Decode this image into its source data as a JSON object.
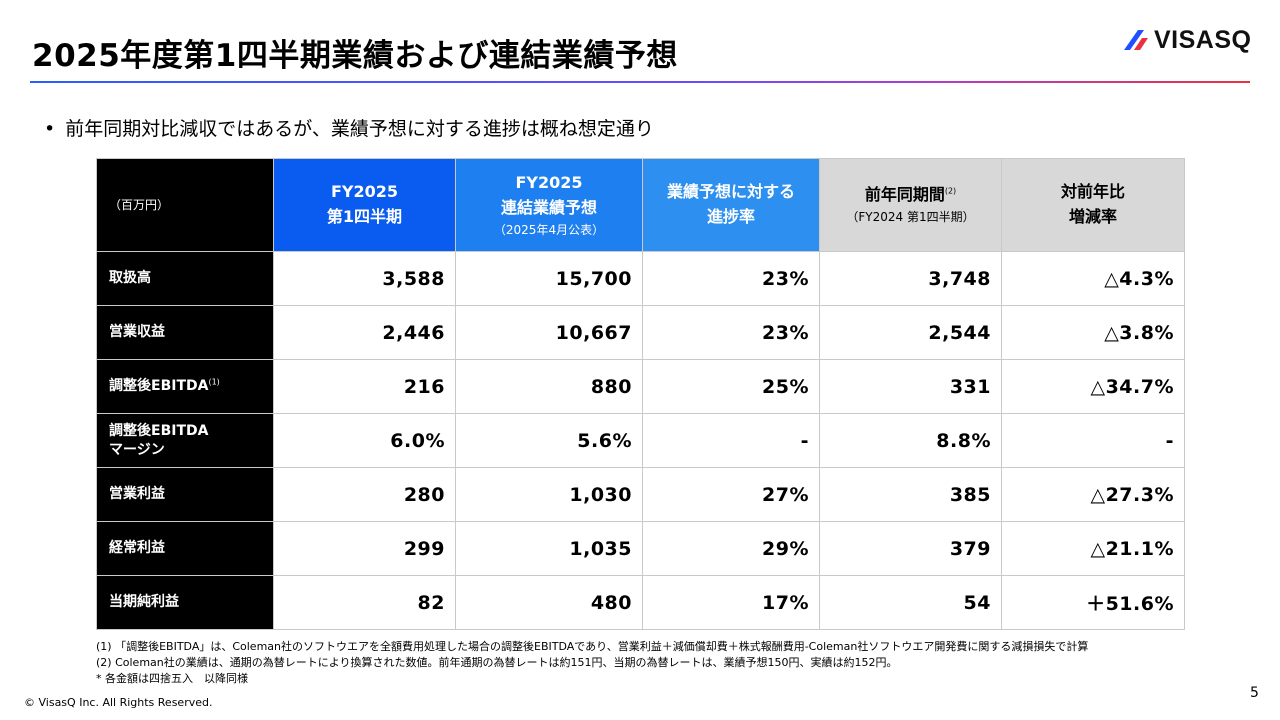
{
  "title": "2025年度第1四半期業績および連結業績予想",
  "logo": {
    "text": "VISASQ",
    "accent_colors": [
      "#e8333f",
      "#1f4fff"
    ]
  },
  "bullet": "前年同期対比減収ではあるが、業績予想に対する進捗は概ね想定通り",
  "table": {
    "unit": "（百万円）",
    "columns": [
      {
        "line1": "FY2025",
        "line2": "第1四半期",
        "note": ""
      },
      {
        "line1": "FY2025",
        "line2": "連結業績予想",
        "note": "（2025年4月公表）"
      },
      {
        "line1": "業績予想に対する",
        "line2": "進捗率",
        "note": ""
      },
      {
        "line1": "前年同期間",
        "sup": "(2)",
        "line2": "",
        "note": "（FY2024 第1四半期）"
      },
      {
        "line1": "対前年比",
        "line2": "増減率",
        "note": ""
      }
    ],
    "rows": [
      {
        "label": "取扱高",
        "label2": "",
        "sup": "",
        "values": [
          "3,588",
          "15,700",
          "23%",
          "3,748",
          "△4.3%"
        ]
      },
      {
        "label": "営業収益",
        "label2": "",
        "sup": "",
        "values": [
          "2,446",
          "10,667",
          "23%",
          "2,544",
          "△3.8%"
        ]
      },
      {
        "label": "調整後EBITDA",
        "label2": "",
        "sup": "(1)",
        "values": [
          "216",
          "880",
          "25%",
          "331",
          "△34.7%"
        ]
      },
      {
        "label": "調整後EBITDA",
        "label2": "マージン",
        "sup": "",
        "values": [
          "6.0%",
          "5.6%",
          "-",
          "8.8%",
          "-"
        ]
      },
      {
        "label": "営業利益",
        "label2": "",
        "sup": "",
        "values": [
          "280",
          "1,030",
          "27%",
          "385",
          "△27.3%"
        ]
      },
      {
        "label": "経常利益",
        "label2": "",
        "sup": "",
        "values": [
          "299",
          "1,035",
          "29%",
          "379",
          "△21.1%"
        ]
      },
      {
        "label": "当期純利益",
        "label2": "",
        "sup": "",
        "values": [
          "82",
          "480",
          "17%",
          "54",
          "＋51.6%"
        ]
      }
    ]
  },
  "notes": [
    "(1) 「調整後EBITDA」は、Coleman社のソフトウエアを全額費用処理した場合の調整後EBITDAであり、営業利益＋減価償却費＋株式報酬費用-Coleman社ソフトウエア開発費に関する減損損失で計算",
    "(2) Coleman社の業績は、通期の為替レートにより換算された数値。前年通期の為替レートは約151円、当期の為替レートは、業績予想150円、実績は約152円。",
    "* 各金額は四捨五入　以降同様"
  ],
  "copyright": "© VisasQ Inc. All Rights Reserved.",
  "page_number": "5"
}
